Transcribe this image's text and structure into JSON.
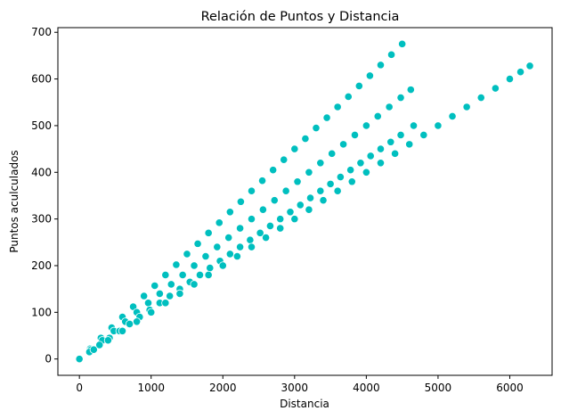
{
  "chart_data": {
    "type": "scatter",
    "title": "Relación de Puntos y Distancia",
    "xlabel": "Distancia",
    "ylabel": "Puntos aculculados",
    "xlim": [
      -300,
      6590
    ],
    "ylim": [
      -35,
      710
    ],
    "xticks": [
      0,
      1000,
      2000,
      3000,
      4000,
      5000,
      6000
    ],
    "yticks": [
      0,
      100,
      200,
      300,
      400,
      500,
      600,
      700
    ],
    "grid": false,
    "legend": "none",
    "colors": {
      "point": "#00bfbf",
      "point_edge": "#ffffff",
      "axes": "#000000"
    },
    "series": [
      {
        "points": [
          [
            0,
            0
          ],
          [
            150,
            22
          ],
          [
            300,
            45
          ],
          [
            450,
            67
          ],
          [
            600,
            90
          ],
          [
            750,
            112
          ],
          [
            900,
            135
          ],
          [
            1050,
            157
          ],
          [
            1200,
            180
          ],
          [
            1350,
            202
          ],
          [
            1500,
            225
          ],
          [
            1650,
            247
          ],
          [
            1800,
            270
          ],
          [
            1950,
            292
          ],
          [
            2100,
            315
          ],
          [
            2250,
            337
          ],
          [
            2400,
            360
          ],
          [
            2550,
            382
          ],
          [
            2700,
            405
          ],
          [
            2850,
            427
          ],
          [
            3000,
            450
          ],
          [
            3150,
            472
          ],
          [
            3300,
            495
          ],
          [
            3450,
            517
          ],
          [
            3600,
            540
          ],
          [
            3750,
            562
          ],
          [
            3900,
            585
          ],
          [
            4050,
            607
          ],
          [
            4200,
            630
          ],
          [
            4350,
            652
          ],
          [
            4500,
            675
          ],
          [
            0,
            0
          ],
          [
            160,
            20
          ],
          [
            320,
            40
          ],
          [
            480,
            60
          ],
          [
            640,
            80
          ],
          [
            800,
            100
          ],
          [
            960,
            120
          ],
          [
            1120,
            140
          ],
          [
            1280,
            160
          ],
          [
            1440,
            180
          ],
          [
            1600,
            200
          ],
          [
            1760,
            220
          ],
          [
            1920,
            240
          ],
          [
            2080,
            260
          ],
          [
            2240,
            280
          ],
          [
            2400,
            300
          ],
          [
            2560,
            320
          ],
          [
            2720,
            340
          ],
          [
            2880,
            360
          ],
          [
            3040,
            380
          ],
          [
            3200,
            400
          ],
          [
            3360,
            420
          ],
          [
            3520,
            440
          ],
          [
            3680,
            460
          ],
          [
            3840,
            480
          ],
          [
            4000,
            500
          ],
          [
            4160,
            520
          ],
          [
            4320,
            540
          ],
          [
            4480,
            560
          ],
          [
            4620,
            577
          ],
          [
            0,
            0
          ],
          [
            140,
            15
          ],
          [
            280,
            30
          ],
          [
            420,
            45
          ],
          [
            560,
            60
          ],
          [
            700,
            75
          ],
          [
            840,
            90
          ],
          [
            980,
            105
          ],
          [
            1120,
            120
          ],
          [
            1260,
            135
          ],
          [
            1400,
            150
          ],
          [
            1540,
            165
          ],
          [
            1680,
            180
          ],
          [
            1820,
            195
          ],
          [
            1960,
            210
          ],
          [
            2100,
            225
          ],
          [
            2240,
            240
          ],
          [
            2380,
            255
          ],
          [
            2520,
            270
          ],
          [
            2660,
            285
          ],
          [
            2800,
            300
          ],
          [
            2940,
            315
          ],
          [
            3080,
            330
          ],
          [
            3220,
            345
          ],
          [
            3360,
            360
          ],
          [
            3500,
            375
          ],
          [
            3640,
            390
          ],
          [
            3780,
            405
          ],
          [
            3920,
            420
          ],
          [
            4060,
            435
          ],
          [
            4200,
            450
          ],
          [
            4340,
            465
          ],
          [
            4480,
            480
          ],
          [
            4660,
            500
          ],
          [
            0,
            0
          ],
          [
            200,
            20
          ],
          [
            400,
            40
          ],
          [
            600,
            60
          ],
          [
            800,
            80
          ],
          [
            1000,
            100
          ],
          [
            1200,
            120
          ],
          [
            1400,
            140
          ],
          [
            1600,
            160
          ],
          [
            1800,
            180
          ],
          [
            2000,
            200
          ],
          [
            2200,
            220
          ],
          [
            2400,
            240
          ],
          [
            2600,
            260
          ],
          [
            2800,
            280
          ],
          [
            3000,
            300
          ],
          [
            3200,
            320
          ],
          [
            3400,
            340
          ],
          [
            3600,
            360
          ],
          [
            3800,
            380
          ],
          [
            4000,
            400
          ],
          [
            4200,
            420
          ],
          [
            4400,
            440
          ],
          [
            4600,
            460
          ],
          [
            4800,
            480
          ],
          [
            5000,
            500
          ],
          [
            5200,
            520
          ],
          [
            5400,
            540
          ],
          [
            5600,
            560
          ],
          [
            5800,
            580
          ],
          [
            6000,
            600
          ],
          [
            6150,
            615
          ],
          [
            6280,
            628
          ]
        ]
      }
    ]
  }
}
